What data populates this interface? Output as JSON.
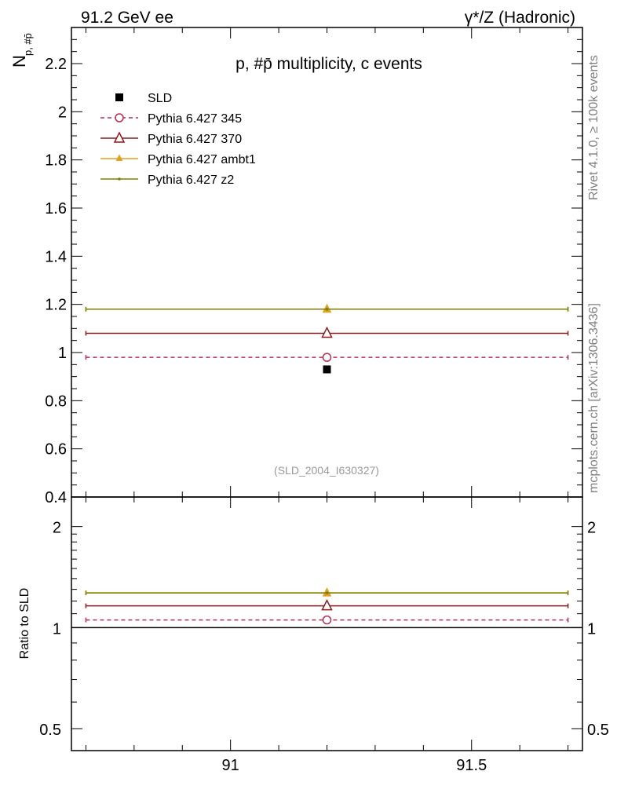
{
  "header": {
    "left": "91.2 GeV ee",
    "right": "γ*/Z (Hadronic)"
  },
  "side_labels": {
    "rivet": "Rivet 4.1.0, ≥ 100k events",
    "mcplots": "mcplots.cern.ch [arXiv:1306.3436]"
  },
  "chart_data": {
    "type": "scatter",
    "title": "p, #p̄ multiplicity, c events",
    "ylabel": "N",
    "ylabel_sub": "p, #p̄",
    "ratio_ylabel": "Ratio to SLD",
    "analysis_id": "(SLD_2004_I630327)",
    "xlim": [
      90.67,
      91.73
    ],
    "ylim": [
      0.4,
      2.35
    ],
    "ratio_ylim": [
      0.43,
      2.45
    ],
    "x_ticks": [
      91,
      91.5
    ],
    "x_tick_labels": [
      "91",
      "91.5"
    ],
    "y_ticks": [
      0.4,
      0.6,
      0.8,
      1,
      1.2,
      1.4,
      1.6,
      1.8,
      2,
      2.2
    ],
    "y_tick_labels": [
      "0.4",
      "0.6",
      "0.8",
      "1",
      "1.2",
      "1.4",
      "1.6",
      "1.8",
      "2",
      "2.2"
    ],
    "ratio_y_ticks": [
      0.5,
      1,
      2
    ],
    "ratio_y_tick_labels": [
      "0.5",
      "1",
      "2"
    ],
    "data": {
      "name": "SLD",
      "x": 91.2,
      "y": 0.93,
      "color": "#000000"
    },
    "series": [
      {
        "name": "Pythia 6.427 345",
        "x": 91.2,
        "xlow": 90.7,
        "xhigh": 91.7,
        "y": 0.98,
        "ratio": 1.054,
        "color": "#b03050",
        "marker": "open-circle",
        "dashed": true
      },
      {
        "name": "Pythia 6.427 370",
        "x": 91.2,
        "xlow": 90.7,
        "xhigh": 91.7,
        "y": 1.08,
        "ratio": 1.161,
        "color": "#8b1a1a",
        "marker": "open-triangle",
        "dashed": false
      },
      {
        "name": "Pythia 6.427 ambt1",
        "x": 91.2,
        "xlow": 90.7,
        "xhigh": 91.7,
        "y": 1.18,
        "ratio": 1.269,
        "color": "#e0a020",
        "marker": "filled-triangle",
        "dashed": false
      },
      {
        "name": "Pythia 6.427 z2",
        "x": 91.2,
        "xlow": 90.7,
        "xhigh": 91.7,
        "y": 1.18,
        "ratio": 1.269,
        "color": "#808000",
        "marker": "dot",
        "dashed": false
      }
    ]
  }
}
